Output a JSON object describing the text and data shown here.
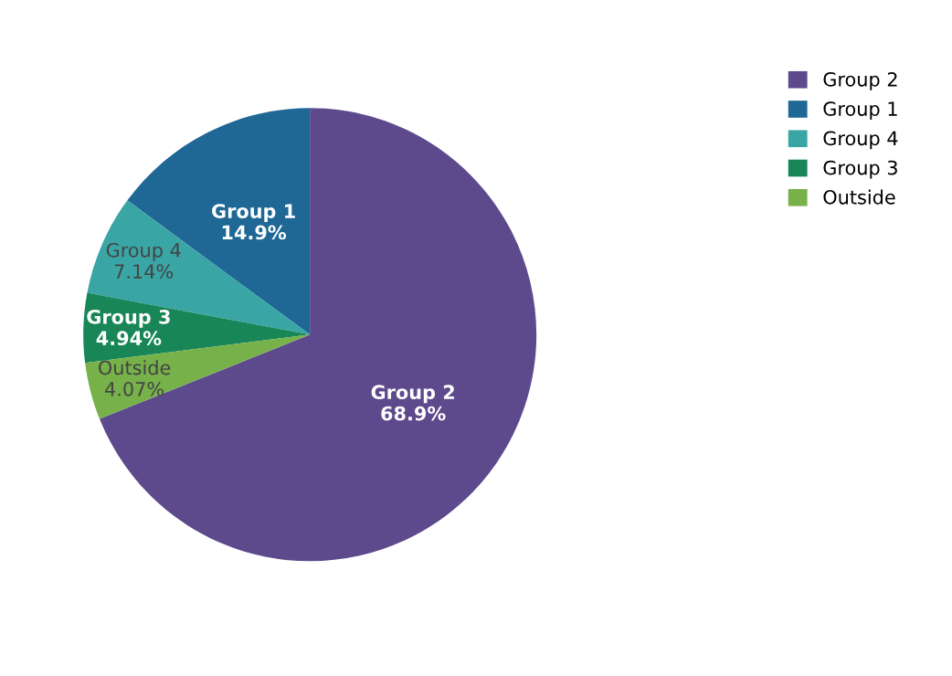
{
  "chart_data": {
    "type": "pie",
    "categories": [
      "Group 2",
      "Group 1",
      "Group 4",
      "Group 3",
      "Outside"
    ],
    "values": [
      68.9,
      14.9,
      7.14,
      4.94,
      4.07
    ],
    "colors": [
      "#5d4a8d",
      "#1f6895",
      "#3aa5a5",
      "#188656",
      "#77b14a"
    ],
    "value_labels": [
      "68.9%",
      "14.9%",
      "7.14%",
      "4.94%",
      "4.07%"
    ],
    "legend": "top right"
  }
}
